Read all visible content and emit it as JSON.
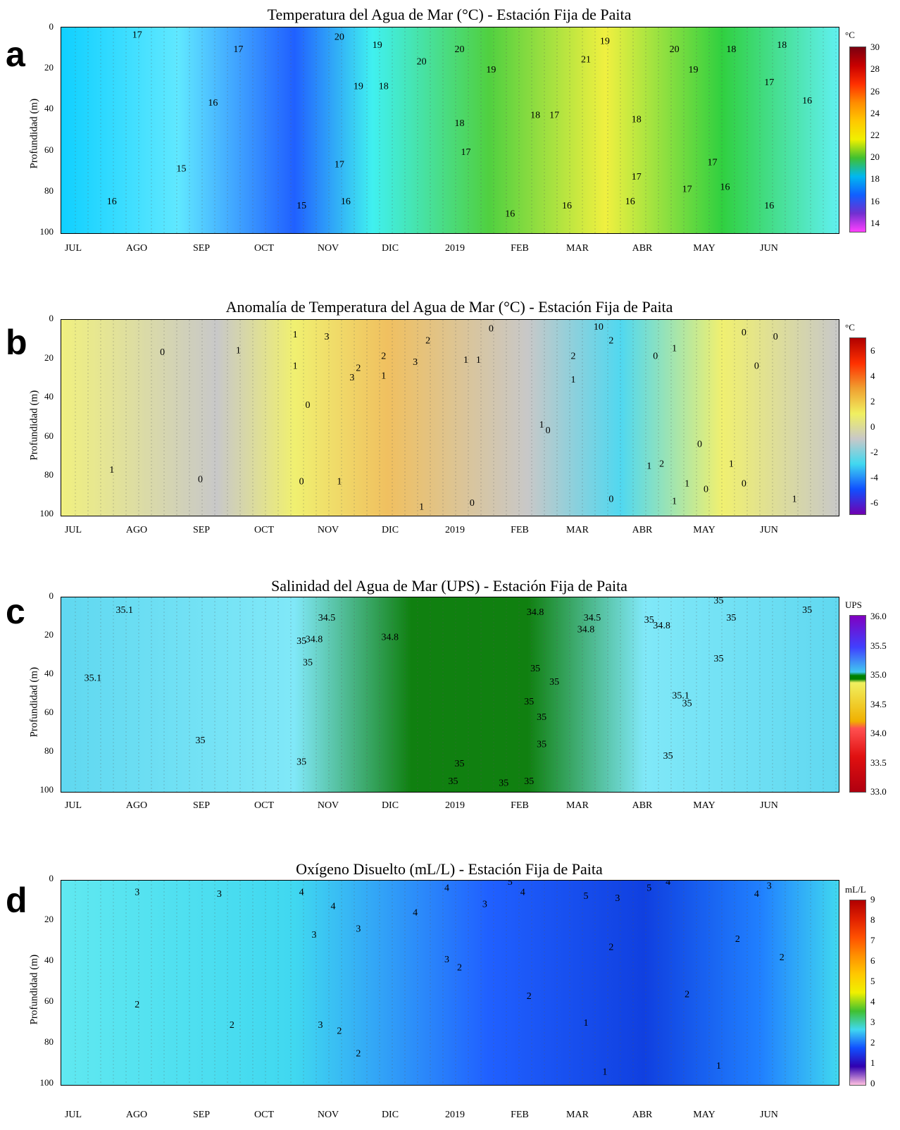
{
  "chart_data": [
    {
      "panel": "a",
      "type": "heatmap",
      "title": "Temperatura del Agua de Mar (°C) - Estación Fija de Paita",
      "ylabel": "Profundidad (m)",
      "y_ticks": [
        "0",
        "20",
        "40",
        "60",
        "80",
        "100"
      ],
      "x_ticks": [
        "JUL",
        "AGO",
        "SEP",
        "OCT",
        "NOV",
        "DIC",
        "2019",
        "FEB",
        "MAR",
        "ABR",
        "MAY",
        "JUN"
      ],
      "ylim": [
        100,
        0
      ],
      "colorbar": {
        "unit": "°C",
        "ticks": [
          "30",
          "28",
          "26",
          "24",
          "22",
          "20",
          "18",
          "16",
          "14"
        ],
        "colors": [
          "#7a0010",
          "#c80000",
          "#ff3000",
          "#ff8c00",
          "#ffc800",
          "#f0f000",
          "#40c030",
          "#00b8f0",
          "#1060ff",
          "#7030d0",
          "#ff40ff"
        ]
      },
      "contour_labels": [
        {
          "text": "17",
          "month": 1.0,
          "depth": 5
        },
        {
          "text": "17",
          "month": 2.6,
          "depth": 12
        },
        {
          "text": "16",
          "month": 2.2,
          "depth": 38
        },
        {
          "text": "15",
          "month": 1.7,
          "depth": 70
        },
        {
          "text": "16",
          "month": 0.6,
          "depth": 86
        },
        {
          "text": "15",
          "month": 3.6,
          "depth": 88
        },
        {
          "text": "20",
          "month": 4.2,
          "depth": 6
        },
        {
          "text": "19",
          "month": 4.8,
          "depth": 10
        },
        {
          "text": "19",
          "month": 4.5,
          "depth": 30
        },
        {
          "text": "18",
          "month": 4.9,
          "depth": 30
        },
        {
          "text": "17",
          "month": 4.2,
          "depth": 68
        },
        {
          "text": "16",
          "month": 4.3,
          "depth": 86
        },
        {
          "text": "20",
          "month": 5.5,
          "depth": 18
        },
        {
          "text": "20",
          "month": 6.1,
          "depth": 12
        },
        {
          "text": "19",
          "month": 6.6,
          "depth": 22
        },
        {
          "text": "18",
          "month": 6.1,
          "depth": 48
        },
        {
          "text": "17",
          "month": 6.2,
          "depth": 62
        },
        {
          "text": "16",
          "month": 6.9,
          "depth": 92
        },
        {
          "text": "18",
          "month": 7.3,
          "depth": 44
        },
        {
          "text": "17",
          "month": 7.6,
          "depth": 44
        },
        {
          "text": "16",
          "month": 7.8,
          "depth": 88
        },
        {
          "text": "21",
          "month": 8.1,
          "depth": 17
        },
        {
          "text": "19",
          "month": 8.4,
          "depth": 8
        },
        {
          "text": "18",
          "month": 8.9,
          "depth": 46
        },
        {
          "text": "17",
          "month": 8.9,
          "depth": 74
        },
        {
          "text": "16",
          "month": 8.8,
          "depth": 86
        },
        {
          "text": "20",
          "month": 9.5,
          "depth": 12
        },
        {
          "text": "19",
          "month": 9.8,
          "depth": 22
        },
        {
          "text": "17",
          "month": 9.7,
          "depth": 80
        },
        {
          "text": "18",
          "month": 10.4,
          "depth": 12
        },
        {
          "text": "17",
          "month": 10.1,
          "depth": 67
        },
        {
          "text": "16",
          "month": 10.3,
          "depth": 79
        },
        {
          "text": "17",
          "month": 11.0,
          "depth": 28
        },
        {
          "text": "18",
          "month": 11.2,
          "depth": 10
        },
        {
          "text": "16",
          "month": 11.6,
          "depth": 37
        },
        {
          "text": "16",
          "month": 11.0,
          "depth": 88
        }
      ]
    },
    {
      "panel": "b",
      "type": "heatmap",
      "title": "Anomalía de Temperatura del Agua de Mar (°C) - Estación Fija de Paita",
      "ylabel": "Profundidad (m)",
      "y_ticks": [
        "0",
        "20",
        "40",
        "60",
        "80",
        "100"
      ],
      "x_ticks": [
        "JUL",
        "AGO",
        "SEP",
        "OCT",
        "NOV",
        "DIC",
        "2019",
        "FEB",
        "MAR",
        "ABR",
        "MAY",
        "JUN"
      ],
      "ylim": [
        100,
        0
      ],
      "colorbar": {
        "unit": "°C",
        "ticks": [
          "6",
          "4",
          "2",
          "0",
          "-2",
          "-4",
          "-6"
        ],
        "colors": [
          "#b00000",
          "#ff3000",
          "#f0a030",
          "#f0f060",
          "#c8c8c8",
          "#40d8f0",
          "#1050ff",
          "#7000b0"
        ]
      },
      "contour_labels": [
        {
          "text": "0",
          "month": 1.4,
          "depth": 18
        },
        {
          "text": "1",
          "month": 0.6,
          "depth": 78
        },
        {
          "text": "0",
          "month": 2.0,
          "depth": 83
        },
        {
          "text": "1",
          "month": 2.6,
          "depth": 17
        },
        {
          "text": "0",
          "month": 3.6,
          "depth": 84
        },
        {
          "text": "1",
          "month": 3.5,
          "depth": 9
        },
        {
          "text": "1",
          "month": 3.5,
          "depth": 25
        },
        {
          "text": "0",
          "month": 3.7,
          "depth": 45
        },
        {
          "text": "3",
          "month": 4.0,
          "depth": 10
        },
        {
          "text": "3",
          "month": 4.4,
          "depth": 31
        },
        {
          "text": "2",
          "month": 4.5,
          "depth": 26
        },
        {
          "text": "1",
          "month": 4.2,
          "depth": 84
        },
        {
          "text": "2",
          "month": 4.9,
          "depth": 20
        },
        {
          "text": "1",
          "month": 4.9,
          "depth": 30
        },
        {
          "text": "3",
          "month": 5.4,
          "depth": 23
        },
        {
          "text": "2",
          "month": 5.6,
          "depth": 12
        },
        {
          "text": "1",
          "month": 5.5,
          "depth": 97
        },
        {
          "text": "0",
          "month": 6.3,
          "depth": 95
        },
        {
          "text": "1",
          "month": 6.2,
          "depth": 22
        },
        {
          "text": "1",
          "month": 6.4,
          "depth": 22
        },
        {
          "text": "0",
          "month": 6.6,
          "depth": 6
        },
        {
          "text": "1",
          "month": 7.4,
          "depth": 55
        },
        {
          "text": "0",
          "month": 7.5,
          "depth": 58
        },
        {
          "text": "2",
          "month": 7.9,
          "depth": 20
        },
        {
          "text": "1",
          "month": 7.9,
          "depth": 32
        },
        {
          "text": "10",
          "month": 8.3,
          "depth": 5
        },
        {
          "text": "2",
          "month": 8.5,
          "depth": 12
        },
        {
          "text": "0",
          "month": 8.5,
          "depth": 93
        },
        {
          "text": "0",
          "month": 9.2,
          "depth": 20
        },
        {
          "text": "1",
          "month": 9.5,
          "depth": 16
        },
        {
          "text": "2",
          "month": 9.3,
          "depth": 75
        },
        {
          "text": "1",
          "month": 9.1,
          "depth": 76
        },
        {
          "text": "1",
          "month": 9.7,
          "depth": 85
        },
        {
          "text": "1",
          "month": 9.5,
          "depth": 94
        },
        {
          "text": "0",
          "month": 9.9,
          "depth": 65
        },
        {
          "text": "0",
          "month": 10.0,
          "depth": 88
        },
        {
          "text": "1",
          "month": 10.4,
          "depth": 75
        },
        {
          "text": "0",
          "month": 10.6,
          "depth": 8
        },
        {
          "text": "0",
          "month": 10.8,
          "depth": 25
        },
        {
          "text": "0",
          "month": 10.6,
          "depth": 85
        },
        {
          "text": "0",
          "month": 11.1,
          "depth": 10
        },
        {
          "text": "1",
          "month": 11.4,
          "depth": 93
        }
      ]
    },
    {
      "panel": "c",
      "type": "heatmap",
      "title": "Salinidad del Agua de Mar (UPS) - Estación Fija de Paita",
      "ylabel": "Profundidad (m)",
      "y_ticks": [
        "0",
        "20",
        "40",
        "60",
        "80",
        "100"
      ],
      "x_ticks": [
        "JUL",
        "AGO",
        "SEP",
        "OCT",
        "NOV",
        "DIC",
        "2019",
        "FEB",
        "MAR",
        "ABR",
        "MAY",
        "JUN"
      ],
      "ylim": [
        100,
        0
      ],
      "colorbar": {
        "unit": "UPS",
        "ticks": [
          "36.0",
          "35.5",
          "35.0",
          "34.5",
          "34.0",
          "33.5",
          "33.0"
        ],
        "colors": [
          "#8000c0",
          "#4040ff",
          "#40c8f0",
          "#008000",
          "#f0f060",
          "#f0b000",
          "#ff5050",
          "#e01010",
          "#b00010"
        ]
      },
      "contour_labels": [
        {
          "text": "35.1",
          "month": 0.8,
          "depth": 8
        },
        {
          "text": "35.1",
          "month": 0.3,
          "depth": 43
        },
        {
          "text": "35",
          "month": 2.0,
          "depth": 75
        },
        {
          "text": "35",
          "month": 3.6,
          "depth": 86
        },
        {
          "text": "35",
          "month": 3.6,
          "depth": 24
        },
        {
          "text": "35",
          "month": 3.7,
          "depth": 35
        },
        {
          "text": "34.5",
          "month": 4.0,
          "depth": 12
        },
        {
          "text": "34.8",
          "month": 3.8,
          "depth": 23
        },
        {
          "text": "34.8",
          "month": 5.0,
          "depth": 22
        },
        {
          "text": "35",
          "month": 6.1,
          "depth": 87
        },
        {
          "text": "35",
          "month": 6.0,
          "depth": 96
        },
        {
          "text": "35",
          "month": 6.8,
          "depth": 97
        },
        {
          "text": "35",
          "month": 7.2,
          "depth": 96
        },
        {
          "text": "34.8",
          "month": 7.3,
          "depth": 9
        },
        {
          "text": "35",
          "month": 7.3,
          "depth": 38
        },
        {
          "text": "35",
          "month": 7.2,
          "depth": 55
        },
        {
          "text": "35",
          "month": 7.4,
          "depth": 63
        },
        {
          "text": "35",
          "month": 7.6,
          "depth": 45
        },
        {
          "text": "35",
          "month": 7.4,
          "depth": 77
        },
        {
          "text": "34.5",
          "month": 8.2,
          "depth": 12
        },
        {
          "text": "34.8",
          "month": 8.1,
          "depth": 18
        },
        {
          "text": "35",
          "month": 9.1,
          "depth": 13
        },
        {
          "text": "34.8",
          "month": 9.3,
          "depth": 16
        },
        {
          "text": "35.1",
          "month": 9.6,
          "depth": 52
        },
        {
          "text": "35",
          "month": 9.7,
          "depth": 56
        },
        {
          "text": "35",
          "month": 9.4,
          "depth": 83
        },
        {
          "text": "35",
          "month": 10.2,
          "depth": 33
        },
        {
          "text": "35",
          "month": 10.2,
          "depth": 3
        },
        {
          "text": "35",
          "month": 10.4,
          "depth": 12
        },
        {
          "text": "35",
          "month": 11.6,
          "depth": 8
        }
      ]
    },
    {
      "panel": "d",
      "type": "heatmap",
      "title": "Oxígeno Disuelto (mL/L) - Estación Fija de Paita",
      "ylabel": "Profundidad (m)",
      "y_ticks": [
        "0",
        "20",
        "40",
        "60",
        "80",
        "100"
      ],
      "x_ticks": [
        "JUL",
        "AGO",
        "SEP",
        "OCT",
        "NOV",
        "DIC",
        "2019",
        "FEB",
        "MAR",
        "ABR",
        "MAY",
        "JUN"
      ],
      "ylim": [
        100,
        0
      ],
      "colorbar": {
        "unit": "mL/L",
        "ticks": [
          "9",
          "8",
          "7",
          "6",
          "5",
          "4",
          "3",
          "2",
          "1",
          "0"
        ],
        "colors": [
          "#b00000",
          "#e02000",
          "#ff5000",
          "#ff9000",
          "#ffc800",
          "#f0f000",
          "#40c030",
          "#40d8f0",
          "#1050ff",
          "#3000b0",
          "#ffc0e0"
        ]
      },
      "contour_labels": [
        {
          "text": "3",
          "month": 1.0,
          "depth": 7
        },
        {
          "text": "3",
          "month": 2.3,
          "depth": 8
        },
        {
          "text": "2",
          "month": 1.0,
          "depth": 62
        },
        {
          "text": "2",
          "month": 2.5,
          "depth": 72
        },
        {
          "text": "4",
          "month": 3.6,
          "depth": 7
        },
        {
          "text": "4",
          "month": 4.1,
          "depth": 14
        },
        {
          "text": "3",
          "month": 3.8,
          "depth": 28
        },
        {
          "text": "3",
          "month": 4.5,
          "depth": 25
        },
        {
          "text": "3",
          "month": 3.9,
          "depth": 72
        },
        {
          "text": "2",
          "month": 4.2,
          "depth": 75
        },
        {
          "text": "2",
          "month": 4.5,
          "depth": 86
        },
        {
          "text": "4",
          "month": 5.4,
          "depth": 17
        },
        {
          "text": "3",
          "month": 5.9,
          "depth": 40
        },
        {
          "text": "4",
          "month": 5.9,
          "depth": 5
        },
        {
          "text": "3",
          "month": 6.5,
          "depth": 13
        },
        {
          "text": "2",
          "month": 6.1,
          "depth": 44
        },
        {
          "text": "5",
          "month": 6.9,
          "depth": 2
        },
        {
          "text": "4",
          "month": 7.1,
          "depth": 7
        },
        {
          "text": "2",
          "month": 7.2,
          "depth": 58
        },
        {
          "text": "5",
          "month": 8.1,
          "depth": 9
        },
        {
          "text": "1",
          "month": 8.1,
          "depth": 71
        },
        {
          "text": "3",
          "month": 8.6,
          "depth": 10
        },
        {
          "text": "2",
          "month": 8.5,
          "depth": 34
        },
        {
          "text": "1",
          "month": 8.4,
          "depth": 95
        },
        {
          "text": "5",
          "month": 9.1,
          "depth": 5
        },
        {
          "text": "4",
          "month": 9.4,
          "depth": 2
        },
        {
          "text": "2",
          "month": 9.7,
          "depth": 57
        },
        {
          "text": "2",
          "month": 10.5,
          "depth": 30
        },
        {
          "text": "1",
          "month": 10.2,
          "depth": 92
        },
        {
          "text": "4",
          "month": 10.8,
          "depth": 8
        },
        {
          "text": "3",
          "month": 11.0,
          "depth": 4
        },
        {
          "text": "2",
          "month": 11.2,
          "depth": 39
        }
      ]
    }
  ]
}
